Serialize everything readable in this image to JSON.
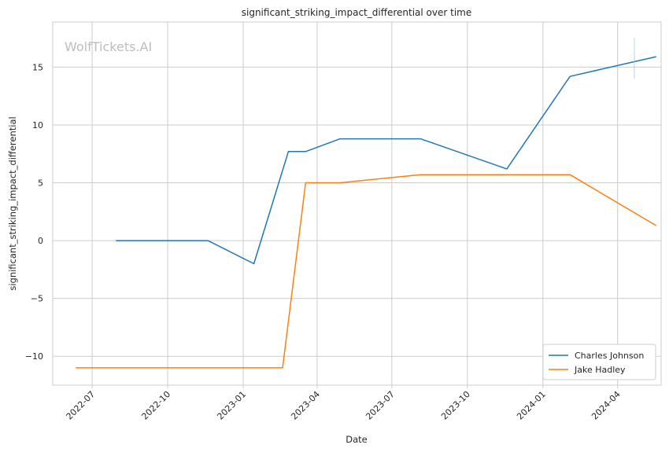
{
  "chart_data": {
    "type": "line",
    "title": "significant_striking_impact_differential over time",
    "xlabel": "Date",
    "ylabel": "significant_striking_impact_differential",
    "watermark": "WolfTickets.AI",
    "x_ticks": [
      "2022-07",
      "2022-10",
      "2023-01",
      "2023-04",
      "2023-07",
      "2023-10",
      "2024-01",
      "2024-04"
    ],
    "x_range": [
      "2022-05-14",
      "2024-05-24"
    ],
    "y_ticks": [
      -10,
      -5,
      0,
      5,
      10,
      15
    ],
    "ylim": [
      -12.5,
      18.9
    ],
    "grid": true,
    "legend_position": "lower right",
    "series": [
      {
        "name": "Charles Johnson",
        "color": "#1f77b4",
        "points": [
          [
            "2022-07-30",
            0
          ],
          [
            "2022-11-19",
            0
          ],
          [
            "2023-01-14",
            -2
          ],
          [
            "2023-02-25",
            7.7
          ],
          [
            "2023-03-18",
            7.7
          ],
          [
            "2023-04-29",
            8.8
          ],
          [
            "2023-08-05",
            8.8
          ],
          [
            "2023-11-18",
            6.2
          ],
          [
            "2024-02-03",
            14.2
          ],
          [
            "2024-05-18",
            15.9
          ]
        ]
      },
      {
        "name": "Jake Hadley",
        "color": "#ff7f0e",
        "points": [
          [
            "2022-06-11",
            -11
          ],
          [
            "2023-02-18",
            -11
          ],
          [
            "2023-03-18",
            5
          ],
          [
            "2023-04-29",
            5
          ],
          [
            "2023-08-05",
            5.7
          ],
          [
            "2024-02-03",
            5.7
          ],
          [
            "2024-05-18",
            1.3
          ]
        ]
      }
    ]
  }
}
